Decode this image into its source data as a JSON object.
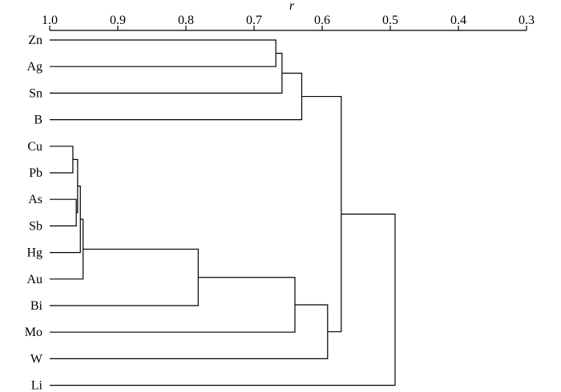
{
  "chart_data": {
    "type": "dendrogram",
    "orientation": "leaves-left, axis-top",
    "axis": {
      "label": "r",
      "min": 1.0,
      "max": 0.3,
      "ticks": [
        "1.0",
        "0.9",
        "0.8",
        "0.7",
        "0.6",
        "0.5",
        "0.4",
        "0.3"
      ],
      "tick_values": [
        1.0,
        0.9,
        0.8,
        0.7,
        0.6,
        0.5,
        0.4,
        0.3
      ]
    },
    "leaves": [
      "Zn",
      "Ag",
      "Sn",
      "B",
      "Cu",
      "Pb",
      "As",
      "Sb",
      "Hg",
      "Au",
      "Bi",
      "Mo",
      "W",
      "Li"
    ],
    "merges": [
      {
        "id": "c1",
        "children": [
          "Zn",
          "Ag"
        ],
        "r": 0.668
      },
      {
        "id": "c2",
        "children": [
          "c1",
          "Sn"
        ],
        "r": 0.659
      },
      {
        "id": "c3",
        "children": [
          "c2",
          "B"
        ],
        "r": 0.63
      },
      {
        "id": "c4",
        "children": [
          "Cu",
          "Pb"
        ],
        "r": 0.966
      },
      {
        "id": "c5",
        "children": [
          "As",
          "Sb"
        ],
        "r": 0.961
      },
      {
        "id": "c6",
        "children": [
          "c4",
          "c5"
        ],
        "r": 0.959
      },
      {
        "id": "c7",
        "children": [
          "c6",
          "Hg"
        ],
        "r": 0.955
      },
      {
        "id": "c8",
        "children": [
          "c7",
          "Au"
        ],
        "r": 0.951
      },
      {
        "id": "c9",
        "children": [
          "c8",
          "Bi"
        ],
        "r": 0.782
      },
      {
        "id": "c10",
        "children": [
          "c9",
          "Mo"
        ],
        "r": 0.64
      },
      {
        "id": "c11",
        "children": [
          "c10",
          "W"
        ],
        "r": 0.592
      },
      {
        "id": "c12",
        "children": [
          "c3",
          "c11"
        ],
        "r": 0.572
      },
      {
        "id": "c13",
        "children": [
          "c12",
          "Li"
        ],
        "r": 0.493
      }
    ]
  }
}
